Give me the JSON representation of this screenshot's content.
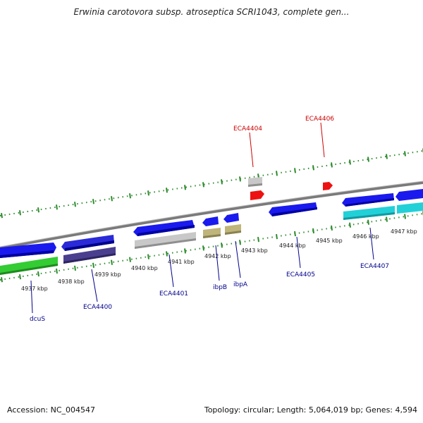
{
  "title": "Erwinia carotovora subsp. atroseptica SCRI1043, complete gen...",
  "footer": {
    "accession": "Accession: NC_004547",
    "stats": "Topology: circular; Length: 5,064,019 bp; Genes: 4,594"
  },
  "colors": {
    "backbone": "#7a7a7a",
    "ticks": "#2e8b2e",
    "label_top": "#cc0000",
    "label_bottom": "#00008b"
  },
  "kbp_labels": [
    "4937 kbp",
    "4938 kbp",
    "4939 kbp",
    "4940 kbp",
    "4941 kbp",
    "4942 kbp",
    "4943 kbp",
    "4944 kbp",
    "4945 kbp",
    "4946 kbp",
    "4947 kbp"
  ],
  "features": [
    {
      "strand": "forward",
      "color": "#1a1aee",
      "shade": "#0000a0"
    },
    {
      "strand": "reverse",
      "color": "#2a2ad8",
      "shade": "#00008a"
    },
    {
      "strand": "forward",
      "color": "#1a1aee",
      "shade": "#0000a0"
    },
    {
      "strand": "reverse",
      "color": "#1a1aee",
      "shade": "#0000a0"
    },
    {
      "strand": "reverse",
      "color": "#1a1aee",
      "shade": "#0000a0"
    },
    {
      "strand": "reverse",
      "color": "#1a1aee",
      "shade": "#0000a0"
    },
    {
      "strand": "forward",
      "color": "#1a1aee",
      "shade": "#0000a0"
    },
    {
      "strand": "forward",
      "color": "#1a1aee",
      "shade": "#0000a0"
    },
    {
      "strand": "forward",
      "color": "#33cc33",
      "shade": "#1f8a1f"
    },
    {
      "strand": "none",
      "color": "#4a3f8f",
      "shade": "#2d2560"
    },
    {
      "strand": "none",
      "color": "#c8c8c8",
      "shade": "#8f8f8f"
    },
    {
      "strand": "none",
      "color": "#bfb47a",
      "shade": "#8a8250"
    },
    {
      "strand": "none",
      "color": "#bfb47a",
      "shade": "#8a8250"
    },
    {
      "strand": "none",
      "color": "#22d0d8",
      "shade": "#119aa0"
    },
    {
      "strand": "none",
      "color": "#22d0d8",
      "shade": "#119aa0"
    },
    {
      "strand": "none",
      "color": "#c8c8c8",
      "shade": "#8f8f8f"
    },
    {
      "strand": "forward",
      "color": "#ee1111",
      "shade": "#a00000"
    },
    {
      "strand": "forward",
      "color": "#ee1111",
      "shade": "#a00000"
    }
  ],
  "gene_labels_top": [
    "ECA4404",
    "ECA4406"
  ],
  "gene_labels_bottom": [
    "dcuS",
    "ECA4400",
    "ECA4401",
    "ibpB",
    "ibpA",
    "ECA4405",
    "ECA4407"
  ]
}
